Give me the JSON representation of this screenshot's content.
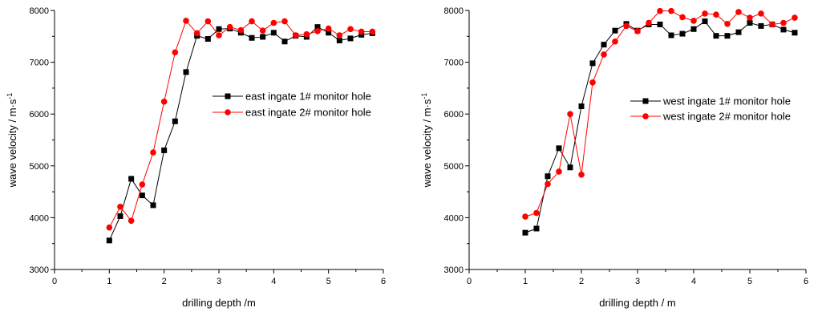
{
  "chart_data": [
    {
      "type": "line",
      "xlabel": "drilling depth /m",
      "ylabel": "wave velocity / m·s",
      "ylabel_sup": "-1",
      "xlim": [
        0,
        6
      ],
      "ylim": [
        3000,
        8000
      ],
      "xticks": [
        0,
        1,
        2,
        3,
        4,
        5,
        6
      ],
      "yticks": [
        3000,
        4000,
        5000,
        6000,
        7000,
        8000
      ],
      "x": [
        1.0,
        1.2,
        1.4,
        1.6,
        1.8,
        2.0,
        2.2,
        2.4,
        2.6,
        2.8,
        3.0,
        3.2,
        3.4,
        3.6,
        3.8,
        4.0,
        4.2,
        4.4,
        4.6,
        4.8,
        5.0,
        5.2,
        5.4,
        5.6,
        5.8
      ],
      "legend_position": "center-right",
      "series": [
        {
          "name": "east ingate 1# monitor hole",
          "color": "#000000",
          "marker": "square",
          "values": [
            3560,
            4030,
            4750,
            4430,
            4240,
            5300,
            5860,
            6810,
            7510,
            7450,
            7640,
            7650,
            7570,
            7470,
            7490,
            7570,
            7400,
            7510,
            7490,
            7680,
            7570,
            7420,
            7460,
            7530,
            7560
          ]
        },
        {
          "name": "east ingate 2# monitor hole",
          "color": "#ff0000",
          "marker": "circle",
          "values": [
            3810,
            4210,
            3940,
            4640,
            5260,
            6240,
            7190,
            7800,
            7560,
            7790,
            7520,
            7680,
            7620,
            7790,
            7610,
            7760,
            7790,
            7520,
            7540,
            7600,
            7650,
            7520,
            7640,
            7590,
            7590
          ]
        }
      ]
    },
    {
      "type": "line",
      "xlabel": "drilling depth / m",
      "ylabel": "wave velocity / m·s",
      "ylabel_sup": "-1",
      "xlim": [
        0,
        6
      ],
      "ylim": [
        3000,
        8000
      ],
      "xticks": [
        0,
        1,
        2,
        3,
        4,
        5,
        6
      ],
      "yticks": [
        3000,
        4000,
        5000,
        6000,
        7000,
        8000
      ],
      "x": [
        1.0,
        1.2,
        1.4,
        1.6,
        1.8,
        2.0,
        2.2,
        2.4,
        2.6,
        2.8,
        3.0,
        3.2,
        3.4,
        3.6,
        3.8,
        4.0,
        4.2,
        4.4,
        4.6,
        4.8,
        5.0,
        5.2,
        5.4,
        5.6,
        5.8
      ],
      "legend_position": "top-right",
      "series": [
        {
          "name": "west ingate 1# monitor hole",
          "color": "#000000",
          "marker": "square",
          "values": [
            3710,
            3790,
            4800,
            5340,
            4970,
            6150,
            6980,
            7340,
            7610,
            7740,
            7610,
            7730,
            7730,
            7520,
            7550,
            7640,
            7790,
            7510,
            7510,
            7580,
            7760,
            7700,
            7730,
            7630,
            7570
          ]
        },
        {
          "name": "west ingate 2# monitor hole",
          "color": "#ff0000",
          "marker": "circle",
          "values": [
            4020,
            4090,
            4650,
            4890,
            6000,
            4830,
            6610,
            7150,
            7400,
            7700,
            7600,
            7760,
            7990,
            7990,
            7870,
            7800,
            7940,
            7920,
            7740,
            7970,
            7860,
            7940,
            7730,
            7760,
            7860
          ]
        }
      ]
    }
  ]
}
